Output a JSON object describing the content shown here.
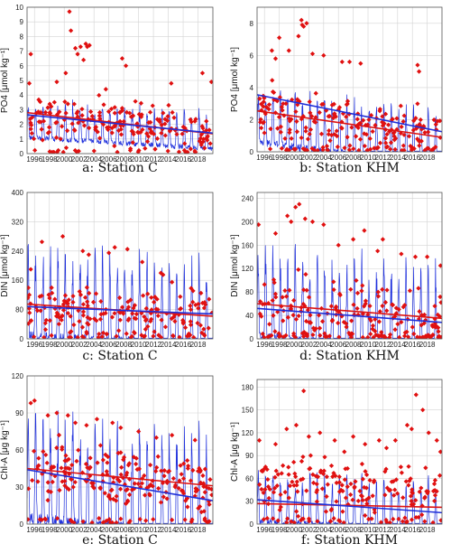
{
  "colors": {
    "model": "#2233dd",
    "obs": "#e01010",
    "obs_trend": "#dd1111",
    "model_trend": "#1f2fd8",
    "grid": "#d3d3d3"
  },
  "x_ticks": [
    "1996",
    "1998",
    "2000",
    "2002",
    "2004",
    "2006",
    "2008",
    "2010",
    "2012",
    "2014",
    "2016",
    "2018"
  ],
  "chart_data": [
    {
      "type": "line",
      "caption": "a: Station C",
      "ylabel": "PO4 [μmol kg⁻¹]",
      "xlim": [
        1995.0,
        2020.0
      ],
      "ylim": [
        0,
        10
      ],
      "yticks": [
        0,
        1,
        2,
        3,
        4,
        5,
        6,
        7,
        8,
        9,
        10
      ],
      "model": {
        "base": 1.1,
        "amp": 2.8,
        "trend": -0.03
      },
      "obs": {
        "n": 210,
        "mean_start": 2.6,
        "mean_end": 1.6,
        "spread": 1.2,
        "outliers": [
          [
            1995.3,
            4.8
          ],
          [
            1995.5,
            6.8
          ],
          [
            1999.0,
            4.9
          ],
          [
            2000.2,
            5.5
          ],
          [
            2000.7,
            9.7
          ],
          [
            2000.9,
            8.4
          ],
          [
            2001.5,
            7.2
          ],
          [
            2001.8,
            6.8
          ],
          [
            2002.2,
            7.3
          ],
          [
            2002.6,
            6.4
          ],
          [
            2002.9,
            7.5
          ],
          [
            2003.1,
            7.3
          ],
          [
            2003.4,
            7.4
          ],
          [
            2005.6,
            4.4
          ],
          [
            2007.8,
            6.5
          ],
          [
            2008.3,
            6.0
          ],
          [
            2014.4,
            4.8
          ],
          [
            2018.6,
            5.5
          ],
          [
            2019.8,
            4.9
          ]
        ]
      },
      "trends": {
        "obs": [
          2.8,
          1.35
        ],
        "model": [
          2.65,
          1.4
        ]
      }
    },
    {
      "type": "line",
      "caption": "b: Station KHM",
      "ylabel": "PO4 [μmol kg⁻¹]",
      "xlim": [
        1995.0,
        2020.0
      ],
      "ylim": [
        0,
        9
      ],
      "yticks": [
        0,
        2,
        4,
        6,
        8
      ],
      "model": {
        "base": 0.6,
        "amp": 3.9,
        "trend": -0.06
      },
      "obs": {
        "n": 230,
        "mean_start": 2.5,
        "mean_end": 1.2,
        "spread": 1.3,
        "outliers": [
          [
            1997.0,
            6.3
          ],
          [
            1997.5,
            5.8
          ],
          [
            1998.0,
            7.1
          ],
          [
            1999.3,
            6.3
          ],
          [
            2000.6,
            7.2
          ],
          [
            2001.0,
            8.2
          ],
          [
            2001.1,
            7.9
          ],
          [
            2001.3,
            7.8
          ],
          [
            2001.7,
            8.0
          ],
          [
            2002.5,
            6.1
          ],
          [
            2004.0,
            6.0
          ],
          [
            2006.5,
            5.6
          ],
          [
            2007.5,
            5.6
          ],
          [
            2009.0,
            5.5
          ],
          [
            2016.7,
            5.4
          ],
          [
            2016.9,
            5.0
          ]
        ]
      },
      "trends": {
        "obs": [
          2.55,
          0.9
        ],
        "model": [
          3.55,
          1.25
        ]
      }
    },
    {
      "type": "line",
      "caption": "c: Station C",
      "ylabel": "DIN [μmol kg⁻¹]",
      "xlim": [
        1995.0,
        2020.0
      ],
      "ylim": [
        0,
        400
      ],
      "yticks": [
        0,
        80,
        160,
        240,
        320,
        400
      ],
      "model": {
        "base": 5,
        "amp": 260,
        "trend": -1.0
      },
      "obs": {
        "n": 200,
        "mean_start": 80,
        "mean_end": 60,
        "spread": 55,
        "outliers": [
          [
            1995.5,
            190
          ],
          [
            1997.0,
            265
          ],
          [
            1999.8,
            280
          ],
          [
            2002.5,
            240
          ],
          [
            2003.3,
            230
          ],
          [
            2006.0,
            235
          ],
          [
            2006.8,
            250
          ],
          [
            2008.5,
            245
          ],
          [
            2010.5,
            210
          ],
          [
            2013.0,
            180
          ],
          [
            2013.3,
            175
          ],
          [
            2014.5,
            155
          ],
          [
            2018.4,
            125
          ]
        ]
      },
      "trends": {
        "obs": [
          95,
          62
        ],
        "model": [
          88,
          68
        ]
      }
    },
    {
      "type": "line",
      "caption": "d: Station KHM",
      "ylabel": "DIN [μmol kg⁻¹]",
      "xlim": [
        1995.0,
        2020.0
      ],
      "ylim": [
        0,
        250
      ],
      "yticks": [
        0,
        40,
        80,
        120,
        160,
        200,
        240
      ],
      "model": {
        "base": 2,
        "amp": 165,
        "trend": -1.2
      },
      "obs": {
        "n": 210,
        "mean_start": 60,
        "mean_end": 35,
        "spread": 45,
        "outliers": [
          [
            1995.2,
            195
          ],
          [
            1997.5,
            180
          ],
          [
            1999.1,
            210
          ],
          [
            1999.6,
            200
          ],
          [
            2000.2,
            225
          ],
          [
            2000.7,
            230
          ],
          [
            2001.5,
            205
          ],
          [
            2002.5,
            200
          ],
          [
            2004.0,
            195
          ],
          [
            2006.0,
            160
          ],
          [
            2008.0,
            170
          ],
          [
            2009.5,
            185
          ],
          [
            2011.3,
            150
          ],
          [
            2012.0,
            170
          ],
          [
            2014.5,
            145
          ],
          [
            2016.4,
            140
          ],
          [
            2018.0,
            140
          ],
          [
            2019.8,
            125
          ]
        ]
      },
      "trends": {
        "obs": [
          60,
          35
        ],
        "model": [
          52,
          28
        ]
      }
    },
    {
      "type": "line",
      "caption": "e: Station C",
      "ylabel": "Chl-A [μg kg⁻¹]",
      "xlim": [
        1995.0,
        2020.0
      ],
      "ylim": [
        0,
        120
      ],
      "yticks": [
        0,
        30,
        60,
        90,
        120
      ],
      "model": {
        "base": 4,
        "amp": 95,
        "trend": -0.6
      },
      "obs": {
        "n": 230,
        "mean_start": 45,
        "mean_end": 30,
        "spread": 18,
        "outliers": [
          [
            1995.5,
            98
          ],
          [
            1996.0,
            100
          ],
          [
            1997.8,
            88
          ],
          [
            1999.0,
            90
          ],
          [
            2000.5,
            88
          ],
          [
            2001.5,
            82
          ],
          [
            2003.0,
            80
          ],
          [
            2004.4,
            85
          ],
          [
            2006.5,
            82
          ],
          [
            2007.6,
            78
          ],
          [
            2010.0,
            75
          ],
          [
            2012.4,
            70
          ],
          [
            2014.5,
            72
          ],
          [
            2017.6,
            68
          ]
        ]
      },
      "trends": {
        "obs": [
          45,
          31
        ],
        "model": [
          44,
          19
        ]
      }
    },
    {
      "type": "line",
      "caption": "f: Station KHM",
      "ylabel": "Chl-A [μg kg⁻¹]",
      "xlim": [
        1995.0,
        2020.0
      ],
      "ylim": [
        0,
        190
      ],
      "yticks": [
        0,
        30,
        60,
        90,
        120,
        150,
        180
      ],
      "model": {
        "base": 4,
        "amp": 70,
        "trend": -0.5
      },
      "obs": {
        "n": 200,
        "mean_start": 50,
        "mean_end": 45,
        "spread": 28,
        "outliers": [
          [
            1995.3,
            110
          ],
          [
            1997.5,
            105
          ],
          [
            1999.0,
            125
          ],
          [
            2000.3,
            130
          ],
          [
            2001.3,
            175
          ],
          [
            2002.0,
            115
          ],
          [
            2003.5,
            120
          ],
          [
            2005.5,
            110
          ],
          [
            2006.8,
            95
          ],
          [
            2008.0,
            115
          ],
          [
            2009.6,
            105
          ],
          [
            2011.5,
            110
          ],
          [
            2012.5,
            100
          ],
          [
            2013.7,
            110
          ],
          [
            2015.3,
            130
          ],
          [
            2015.9,
            125
          ],
          [
            2016.5,
            170
          ],
          [
            2017.4,
            150
          ],
          [
            2018.2,
            120
          ],
          [
            2019.3,
            110
          ],
          [
            2019.8,
            95
          ]
        ]
      },
      "trends": {
        "obs": [
          27,
          22
        ],
        "model": [
          32,
          15
        ]
      }
    }
  ]
}
